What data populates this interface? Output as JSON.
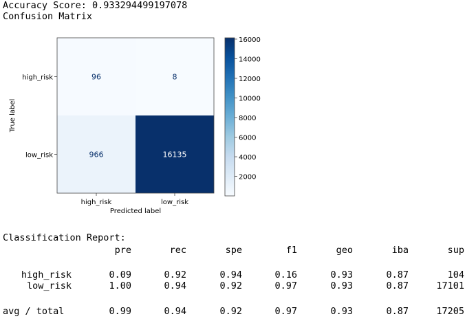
{
  "output": {
    "accuracy_line": "Accuracy Score: 0.933294499197078",
    "confusion_title": "Confusion Matrix"
  },
  "chart_data": {
    "type": "heatmap",
    "colormap": "Blues",
    "row_labels": [
      "high_risk",
      "low_risk"
    ],
    "col_labels": [
      "high_risk",
      "low_risk"
    ],
    "values": [
      [
        96,
        8
      ],
      [
        966,
        16135
      ]
    ],
    "xlabel": "Predicted label",
    "ylabel": "True label",
    "colorbar": {
      "range": [
        8,
        16135
      ],
      "ticks": [
        2000,
        4000,
        6000,
        8000,
        10000,
        12000,
        14000,
        16000
      ],
      "colors": {
        "low": "#f7fbff",
        "high": "#08306b"
      }
    },
    "grid": false
  },
  "report": {
    "title": "Classification Report:",
    "headers": [
      "pre",
      "rec",
      "spe",
      "f1",
      "geo",
      "iba",
      "sup"
    ],
    "rows": [
      {
        "label": "high_risk",
        "values": [
          "0.09",
          "0.92",
          "0.94",
          "0.16",
          "0.93",
          "0.87",
          "104"
        ]
      },
      {
        "label": "low_risk",
        "values": [
          "1.00",
          "0.94",
          "0.92",
          "0.97",
          "0.93",
          "0.87",
          "17101"
        ]
      },
      {
        "label": "avg / total",
        "values": [
          "0.99",
          "0.94",
          "0.92",
          "0.97",
          "0.93",
          "0.87",
          "17205"
        ]
      }
    ]
  }
}
